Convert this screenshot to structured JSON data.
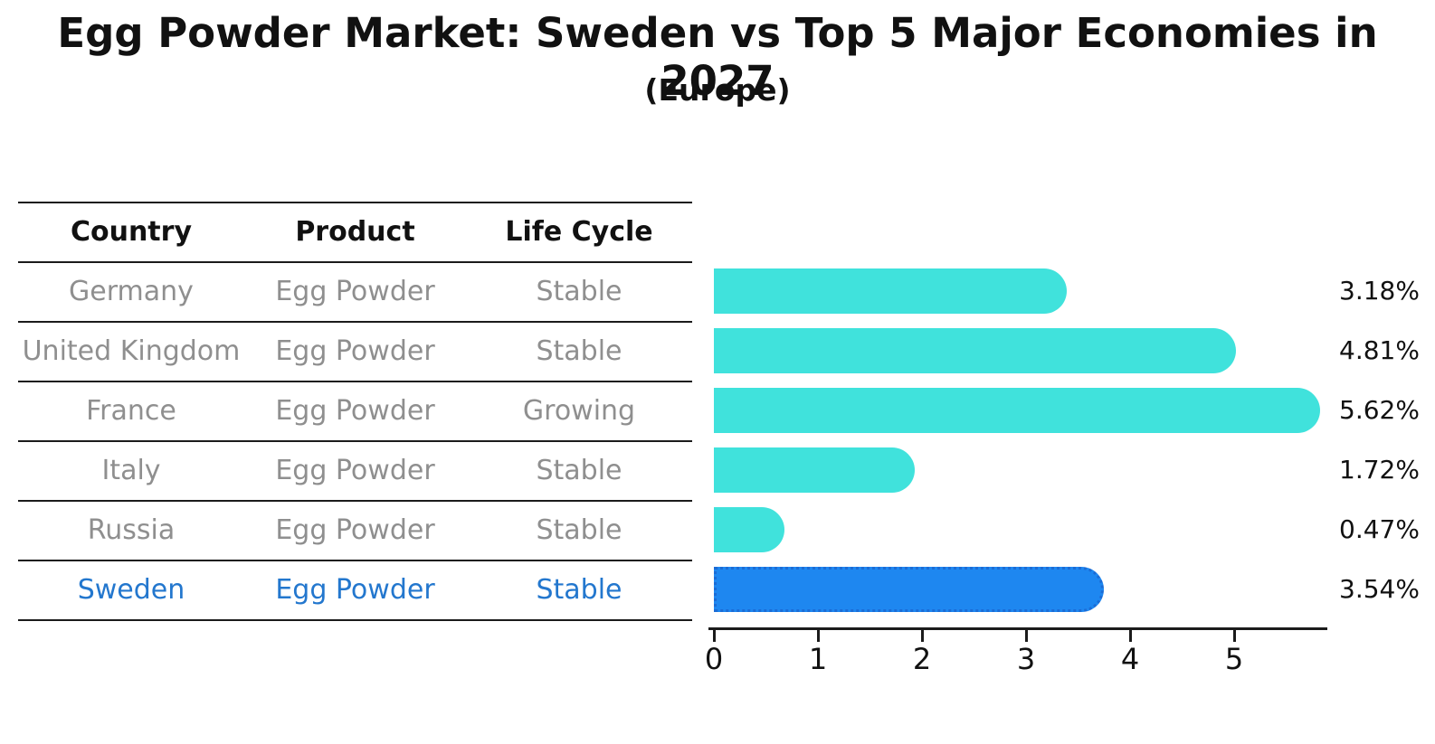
{
  "chart": {
    "title": "Egg Powder Market: Sweden vs Top 5 Major Economies in 2027",
    "subtitle": "(Europe)"
  },
  "table": {
    "headers": [
      "Country",
      "Product",
      "Life Cycle"
    ],
    "rows": [
      {
        "country": "Germany",
        "product": "Egg Powder",
        "life_cycle": "Stable",
        "value_label": "3.18%",
        "highlighted": false
      },
      {
        "country": "United Kingdom",
        "product": "Egg Powder",
        "life_cycle": "Stable",
        "value_label": "4.81%",
        "highlighted": false
      },
      {
        "country": "France",
        "product": "Egg Powder",
        "life_cycle": "Growing",
        "value_label": "5.62%",
        "highlighted": false
      },
      {
        "country": "Italy",
        "product": "Egg Powder",
        "life_cycle": "Stable",
        "value_label": "1.72%",
        "highlighted": false
      },
      {
        "country": "Russia",
        "product": "Egg Powder",
        "life_cycle": "Stable",
        "value_label": "0.47%",
        "highlighted": false
      },
      {
        "country": "Sweden",
        "product": "Egg Powder",
        "life_cycle": "Stable",
        "value_label": "3.54%",
        "highlighted": true
      }
    ]
  },
  "chart_data": {
    "type": "bar",
    "orientation": "horizontal",
    "title": "Egg Powder Market: Sweden vs Top 5 Major Economies in 2027",
    "subtitle": "(Europe)",
    "categories": [
      "Germany",
      "United Kingdom",
      "France",
      "Italy",
      "Russia",
      "Sweden"
    ],
    "values": [
      3.18,
      4.81,
      5.62,
      1.72,
      0.47,
      3.54
    ],
    "labels": [
      "3.18%",
      "4.81%",
      "5.62%",
      "1.72%",
      "0.47%",
      "3.54%"
    ],
    "xticks": [
      0,
      1,
      2,
      3,
      4,
      5
    ],
    "xlim": [
      0,
      5.9
    ],
    "grid": false,
    "legend": "none",
    "bar_color": "#40e2dc",
    "highlight_index": 5,
    "highlight_color": "#1e87f0",
    "highlight_border_color": "#1b6cd6",
    "highlight_text_color": "#2377ce",
    "muted_text_color": "#8f8f8f"
  }
}
